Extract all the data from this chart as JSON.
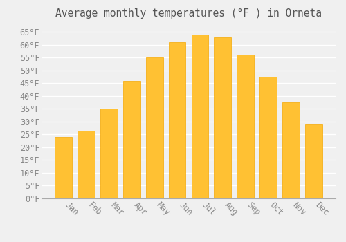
{
  "title": "Average monthly temperatures (°F ) in Orneta",
  "months": [
    "Jan",
    "Feb",
    "Mar",
    "Apr",
    "May",
    "Jun",
    "Jul",
    "Aug",
    "Sep",
    "Oct",
    "Nov",
    "Dec"
  ],
  "values": [
    24,
    26.5,
    35,
    46,
    55,
    61,
    64,
    63,
    56,
    47.5,
    37.5,
    29
  ],
  "bar_color_main": "#FFC133",
  "bar_color_edge": "#F5A800",
  "background_color": "#F0F0F0",
  "plot_bg_color": "#F0F0F0",
  "grid_color": "#FFFFFF",
  "text_color": "#888888",
  "title_color": "#555555",
  "ylim": [
    0,
    68
  ],
  "yticks": [
    0,
    5,
    10,
    15,
    20,
    25,
    30,
    35,
    40,
    45,
    50,
    55,
    60,
    65
  ],
  "title_fontsize": 10.5,
  "tick_fontsize": 8.5,
  "bar_width": 0.75
}
